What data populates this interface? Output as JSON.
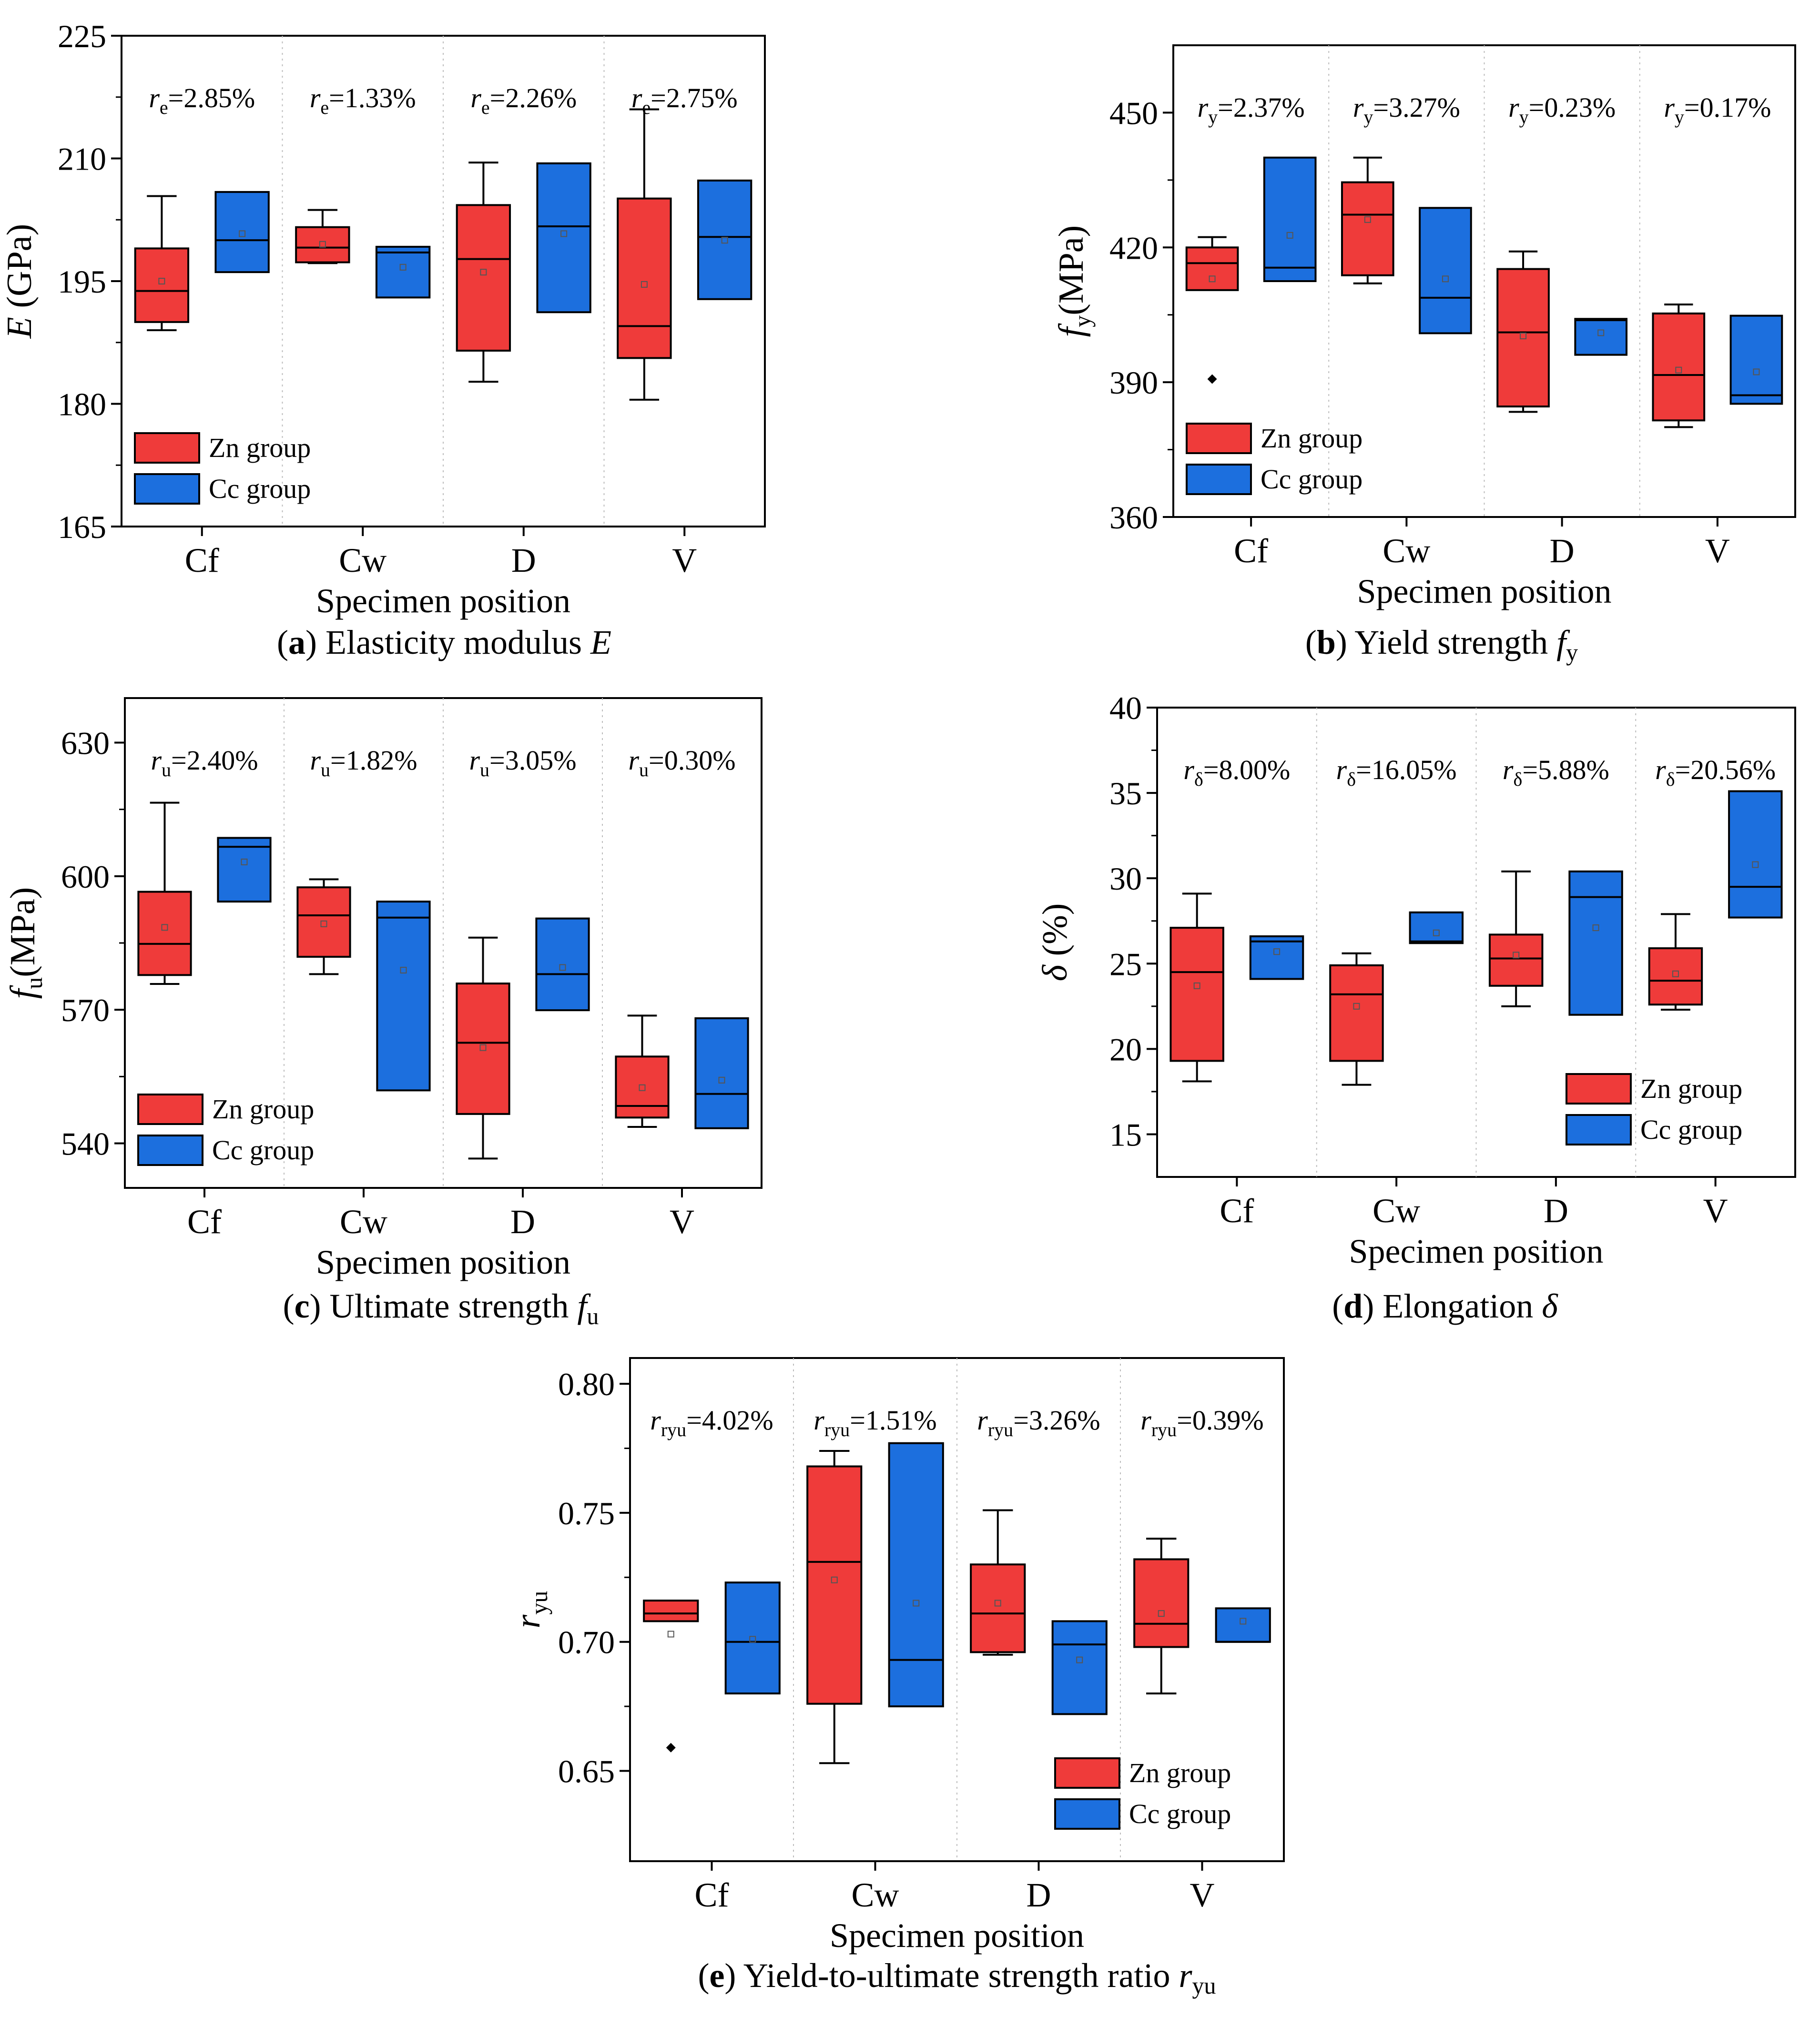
{
  "figure": {
    "common": {
      "xlabel": "Specimen position",
      "categories": [
        "Cf",
        "Cw",
        "D",
        "V"
      ],
      "legend": {
        "zn": "Zn group",
        "cc": "Cc group"
      }
    },
    "colors": {
      "zn": "#ef3b3a",
      "cc": "#1c6fde",
      "axis": "#000000",
      "mean": "#555555",
      "divider": "#bbbbbb"
    }
  },
  "chart_data": [
    {
      "id": "a",
      "type": "box",
      "title": "Elasticity modulus E",
      "caption": {
        "letter": "a",
        "text": "Elasticity modulus ",
        "symbol": "E",
        "sub": ""
      },
      "ylabel": {
        "sym": "E",
        "sub": "",
        "unit": " (GPa)"
      },
      "ylim": [
        165,
        225
      ],
      "yticks": [
        165,
        180,
        195,
        210,
        225
      ],
      "tick_decimals": 0,
      "categories": [
        "Cf",
        "Cw",
        "D",
        "V"
      ],
      "legend": "lower-left",
      "cv_labels": [
        {
          "sym": "r",
          "sub": "e",
          "val": "=2.85%"
        },
        {
          "sym": "r",
          "sub": "e",
          "val": "=1.33%"
        },
        {
          "sym": "r",
          "sub": "e",
          "val": "=2.26%"
        },
        {
          "sym": "r",
          "sub": "e",
          "val": "=2.75%"
        }
      ],
      "series": [
        {
          "name": "Zn group",
          "boxes": [
            {
              "min": 189,
              "q1": 190,
              "median": 193.8,
              "q3": 199,
              "max": 205.4,
              "mean": 195
            },
            {
              "min": 197.2,
              "q1": 197.3,
              "median": 199.1,
              "q3": 201.6,
              "max": 203.7,
              "mean": 199.5
            },
            {
              "min": 182.7,
              "q1": 186.5,
              "median": 197.7,
              "q3": 204.3,
              "max": 209.5,
              "mean": 196.1
            },
            {
              "min": 180.5,
              "q1": 185.6,
              "median": 189.5,
              "q3": 205.1,
              "max": 216,
              "mean": 194.6
            }
          ]
        },
        {
          "name": "Cc group",
          "boxes": [
            {
              "min": 196.1,
              "q1": 196.1,
              "median": 200,
              "q3": 205.9,
              "max": 205.9,
              "mean": 200.8
            },
            {
              "min": 193,
              "q1": 193,
              "median": 198.5,
              "q3": 199.2,
              "max": 199.2,
              "mean": 196.7
            },
            {
              "min": 191.2,
              "q1": 191.2,
              "median": 201.7,
              "q3": 209.4,
              "max": 209.4,
              "mean": 200.8
            },
            {
              "min": 192.8,
              "q1": 192.8,
              "median": 200.4,
              "q3": 207.3,
              "max": 207.3,
              "mean": 200
            }
          ]
        }
      ]
    },
    {
      "id": "b",
      "type": "box",
      "title": "Yield strength fy",
      "caption": {
        "letter": "b",
        "text": "Yield strength ",
        "symbol": "f",
        "sub": "y"
      },
      "ylabel": {
        "sym": "f",
        "sub": "y",
        "unit": "(MPa)"
      },
      "ylim": [
        360,
        465
      ],
      "yticks": [
        360,
        390,
        420,
        450
      ],
      "tick_decimals": 0,
      "categories": [
        "Cf",
        "Cw",
        "D",
        "V"
      ],
      "legend": "lower-left",
      "cv_labels": [
        {
          "sym": "r",
          "sub": "y",
          "val": "=2.37%"
        },
        {
          "sym": "r",
          "sub": "y",
          "val": "=3.27%"
        },
        {
          "sym": "r",
          "sub": "y",
          "val": "=0.23%"
        },
        {
          "sym": "r",
          "sub": "y",
          "val": "=0.17%"
        }
      ],
      "series": [
        {
          "name": "Zn group",
          "boxes": [
            {
              "min": 410.5,
              "q1": 410.5,
              "median": 416.5,
              "q3": 420,
              "max": 422.3,
              "mean": 413,
              "outlier": 390.7
            },
            {
              "min": 412,
              "q1": 413.8,
              "median": 427.3,
              "q3": 434.5,
              "max": 440,
              "mean": 426.2
            },
            {
              "min": 383.4,
              "q1": 384.6,
              "median": 401.1,
              "q3": 415.2,
              "max": 419.1,
              "mean": 400.3
            },
            {
              "min": 380,
              "q1": 381.5,
              "median": 391.6,
              "q3": 405.3,
              "max": 407.3,
              "mean": 392.7
            }
          ]
        },
        {
          "name": "Cc group",
          "boxes": [
            {
              "min": 412.5,
              "q1": 412.5,
              "median": 415.5,
              "q3": 440,
              "max": 440,
              "mean": 422.7
            },
            {
              "min": 400.9,
              "q1": 400.9,
              "median": 408.8,
              "q3": 428.8,
              "max": 428.8,
              "mean": 413
            },
            {
              "min": 396.1,
              "q1": 396.1,
              "median": 403.8,
              "q3": 404.1,
              "max": 404.1,
              "mean": 401
            },
            {
              "min": 385.2,
              "q1": 385.2,
              "median": 387.1,
              "q3": 404.8,
              "max": 404.8,
              "mean": 392.3
            }
          ]
        }
      ]
    },
    {
      "id": "c",
      "type": "box",
      "title": "Ultimate strength fu",
      "caption": {
        "letter": "c",
        "text": "Ultimate strength ",
        "symbol": "f",
        "sub": "u"
      },
      "ylabel": {
        "sym": "f",
        "sub": "u",
        "unit": "(MPa)"
      },
      "ylim": [
        530,
        640
      ],
      "yticks": [
        540,
        570,
        600,
        630
      ],
      "tick_decimals": 0,
      "categories": [
        "Cf",
        "Cw",
        "D",
        "V"
      ],
      "legend": "lower-left",
      "cv_labels": [
        {
          "sym": "r",
          "sub": "u",
          "val": "=2.40%"
        },
        {
          "sym": "r",
          "sub": "u",
          "val": "=1.82%"
        },
        {
          "sym": "r",
          "sub": "u",
          "val": "=3.05%"
        },
        {
          "sym": "r",
          "sub": "u",
          "val": "=0.30%"
        }
      ],
      "series": [
        {
          "name": "Zn group",
          "boxes": [
            {
              "min": 575.8,
              "q1": 577.8,
              "median": 584.8,
              "q3": 596.5,
              "max": 616.5,
              "mean": 588.5
            },
            {
              "min": 578,
              "q1": 581.9,
              "median": 591.2,
              "q3": 597.5,
              "max": 599.3,
              "mean": 589.3
            },
            {
              "min": 536.6,
              "q1": 546.6,
              "median": 562.6,
              "q3": 575.9,
              "max": 586.2,
              "mean": 561.5
            },
            {
              "min": 543.7,
              "q1": 545.8,
              "median": 548.4,
              "q3": 559.5,
              "max": 568.7,
              "mean": 552.5
            }
          ]
        },
        {
          "name": "Cc group",
          "boxes": [
            {
              "min": 594.3,
              "q1": 594.3,
              "median": 606.6,
              "q3": 608.6,
              "max": 608.6,
              "mean": 603.2
            },
            {
              "min": 551.9,
              "q1": 551.9,
              "median": 590.7,
              "q3": 594.3,
              "max": 594.3,
              "mean": 578.9
            },
            {
              "min": 569.9,
              "q1": 569.9,
              "median": 578,
              "q3": 590.5,
              "max": 590.5,
              "mean": 579.5
            },
            {
              "min": 543.4,
              "q1": 543.4,
              "median": 551.1,
              "q3": 568.1,
              "max": 568.1,
              "mean": 554.2
            }
          ]
        }
      ]
    },
    {
      "id": "d",
      "type": "box",
      "title": "Elongation δ",
      "caption": {
        "letter": "d",
        "text": "Elongation ",
        "symbol": "δ",
        "sub": ""
      },
      "ylabel": {
        "sym": "δ",
        "sub": "",
        "unit": " (%)"
      },
      "ylim": [
        12.5,
        40
      ],
      "yticks": [
        15,
        20,
        25,
        30,
        35,
        40
      ],
      "tick_decimals": 0,
      "categories": [
        "Cf",
        "Cw",
        "D",
        "V"
      ],
      "legend": "lower-right",
      "cv_labels": [
        {
          "sym": "r",
          "sub": "δ",
          "val": "=8.00%"
        },
        {
          "sym": "r",
          "sub": "δ",
          "val": "=16.05%"
        },
        {
          "sym": "r",
          "sub": "δ",
          "val": "=5.88%"
        },
        {
          "sym": "r",
          "sub": "δ",
          "val": "=20.56%"
        }
      ],
      "series": [
        {
          "name": "Zn group",
          "boxes": [
            {
              "min": 18.1,
              "q1": 19.3,
              "median": 24.5,
              "q3": 27.1,
              "max": 29.1,
              "mean": 23.7
            },
            {
              "min": 17.9,
              "q1": 19.3,
              "median": 23.2,
              "q3": 24.9,
              "max": 25.6,
              "mean": 22.5
            },
            {
              "min": 22.5,
              "q1": 23.7,
              "median": 25.3,
              "q3": 26.7,
              "max": 30.4,
              "mean": 25.5
            },
            {
              "min": 22.3,
              "q1": 22.6,
              "median": 24,
              "q3": 25.9,
              "max": 27.9,
              "mean": 24.4
            }
          ]
        },
        {
          "name": "Cc group",
          "boxes": [
            {
              "min": 24.1,
              "q1": 24.1,
              "median": 26.3,
              "q3": 26.6,
              "max": 26.6,
              "mean": 25.7
            },
            {
              "min": 26.2,
              "q1": 26.2,
              "median": 26.3,
              "q3": 28,
              "max": 28,
              "mean": 26.8
            },
            {
              "min": 22,
              "q1": 22,
              "median": 28.9,
              "q3": 30.4,
              "max": 30.4,
              "mean": 27.1
            },
            {
              "min": 27.7,
              "q1": 27.7,
              "median": 29.5,
              "q3": 35.1,
              "max": 35.1,
              "mean": 30.8
            }
          ]
        }
      ]
    },
    {
      "id": "e",
      "type": "box",
      "title": "Yield-to-ultimate strength ratio ryu",
      "caption": {
        "letter": "e",
        "text": "Yield-to-ultimate strength ratio ",
        "symbol": "r",
        "sub": "yu"
      },
      "ylabel": {
        "sym": "r",
        "sub": "yu",
        "unit": ""
      },
      "ylim": [
        0.615,
        0.81
      ],
      "yticks": [
        0.65,
        0.7,
        0.75,
        0.8
      ],
      "tick_decimals": 2,
      "categories": [
        "Cf",
        "Cw",
        "D",
        "V"
      ],
      "legend": "lower-right",
      "cv_labels": [
        {
          "sym": "r",
          "sub": "ryu",
          "val": "=4.02%"
        },
        {
          "sym": "r",
          "sub": "ryu",
          "val": "=1.51%"
        },
        {
          "sym": "r",
          "sub": "ryu",
          "val": "=3.26%"
        },
        {
          "sym": "r",
          "sub": "ryu",
          "val": "=0.39%"
        }
      ],
      "series": [
        {
          "name": "Zn group",
          "boxes": [
            {
              "min": 0.708,
              "q1": 0.708,
              "median": 0.711,
              "q3": 0.716,
              "max": 0.716,
              "mean": 0.703,
              "outlier": 0.659
            },
            {
              "min": 0.653,
              "q1": 0.676,
              "median": 0.731,
              "q3": 0.768,
              "max": 0.774,
              "mean": 0.724
            },
            {
              "min": 0.695,
              "q1": 0.696,
              "median": 0.711,
              "q3": 0.73,
              "max": 0.751,
              "mean": 0.715
            },
            {
              "min": 0.68,
              "q1": 0.698,
              "median": 0.707,
              "q3": 0.732,
              "max": 0.74,
              "mean": 0.711
            }
          ]
        },
        {
          "name": "Cc group",
          "boxes": [
            {
              "min": 0.68,
              "q1": 0.68,
              "median": 0.7,
              "q3": 0.723,
              "max": 0.723,
              "mean": 0.701
            },
            {
              "min": 0.675,
              "q1": 0.675,
              "median": 0.693,
              "q3": 0.777,
              "max": 0.777,
              "mean": 0.715
            },
            {
              "min": 0.672,
              "q1": 0.672,
              "median": 0.699,
              "q3": 0.708,
              "max": 0.708,
              "mean": 0.693
            },
            {
              "min": 0.7,
              "q1": 0.7,
              "median": 0.7,
              "q3": 0.713,
              "max": 0.713,
              "mean": 0.708
            }
          ]
        }
      ]
    }
  ]
}
